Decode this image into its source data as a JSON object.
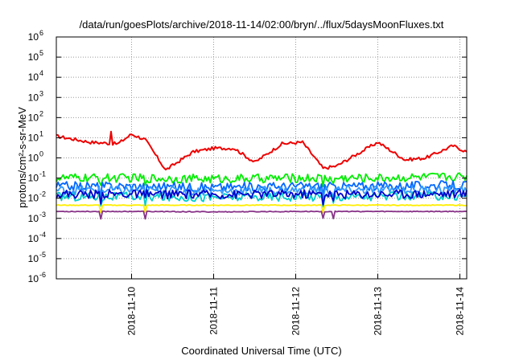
{
  "chart_data": {
    "type": "line",
    "title": "/data/run/goesPlots/archive/2018-11-14/02:00/bryn/../flux/5daysMoonFluxes.txt",
    "xlabel": "Coordinated Universal Time (UTC)",
    "ylabel": "protons/cm²-s-sr-MeV",
    "yscale": "log",
    "ylim": [
      1e-06,
      1000000.0
    ],
    "xlim": [
      "2018-11-09T02:00",
      "2018-11-14T02:00"
    ],
    "x_ticks": [
      "2018-11-10",
      "2018-11-11",
      "2018-11-12",
      "2018-11-13",
      "2018-11-14"
    ],
    "y_ticks": [
      {
        "base": "10",
        "exp": "-6"
      },
      {
        "base": "10",
        "exp": "-5"
      },
      {
        "base": "10",
        "exp": "-4"
      },
      {
        "base": "10",
        "exp": "-3"
      },
      {
        "base": "10",
        "exp": "-2"
      },
      {
        "base": "10",
        "exp": "-1"
      },
      {
        "base": "10",
        "exp": "0"
      },
      {
        "base": "10",
        "exp": "1"
      },
      {
        "base": "10",
        "exp": "2"
      },
      {
        "base": "10",
        "exp": "3"
      },
      {
        "base": "10",
        "exp": "4"
      },
      {
        "base": "10",
        "exp": "5"
      },
      {
        "base": "10",
        "exp": "6"
      }
    ],
    "grid": true,
    "series": [
      {
        "color": "#ee0000",
        "x": [
          "2018-11-09T02:00",
          "2018-11-09T12:00",
          "2018-11-09T20:00",
          "2018-11-10T00:00",
          "2018-11-10T04:00",
          "2018-11-10T10:00",
          "2018-11-10T18:00",
          "2018-11-11T00:00",
          "2018-11-11T06:00",
          "2018-11-11T12:00",
          "2018-11-11T20:00",
          "2018-11-12T02:00",
          "2018-11-12T08:00",
          "2018-11-12T12:00",
          "2018-11-12T16:00",
          "2018-11-13T00:00",
          "2018-11-13T08:00",
          "2018-11-13T14:00",
          "2018-11-13T22:00",
          "2018-11-14T02:00"
        ],
        "values": [
          12,
          6,
          5,
          15,
          8,
          0.25,
          2,
          3,
          3,
          0.6,
          5,
          6,
          0.3,
          0.4,
          1,
          6,
          0.8,
          1,
          4,
          2
        ]
      },
      {
        "color": "#00ee00",
        "x": [
          "2018-11-09T02:00",
          "2018-11-10T00:00",
          "2018-11-11T00:00",
          "2018-11-12T00:00",
          "2018-11-13T00:00",
          "2018-11-14T02:00"
        ],
        "values": [
          0.1,
          0.1,
          0.09,
          0.1,
          0.1,
          0.12
        ]
      },
      {
        "color": "#0066ff",
        "x": [
          "2018-11-09T02:00",
          "2018-11-10T00:00",
          "2018-11-11T00:00",
          "2018-11-12T00:00",
          "2018-11-13T00:00",
          "2018-11-14T02:00"
        ],
        "values": [
          0.04,
          0.04,
          0.035,
          0.04,
          0.04,
          0.045
        ]
      },
      {
        "color": "#3399ff",
        "x": [
          "2018-11-09T02:00",
          "2018-11-10T00:00",
          "2018-11-11T00:00",
          "2018-11-12T00:00",
          "2018-11-13T00:00",
          "2018-11-14T02:00"
        ],
        "values": [
          0.025,
          0.025,
          0.022,
          0.025,
          0.025,
          0.028
        ]
      },
      {
        "color": "#00cccc",
        "x": [
          "2018-11-09T02:00",
          "2018-11-10T00:00",
          "2018-11-11T00:00",
          "2018-11-12T00:00",
          "2018-11-13T00:00",
          "2018-11-14T02:00"
        ],
        "values": [
          0.012,
          0.012,
          0.011,
          0.012,
          0.012,
          0.013
        ]
      },
      {
        "color": "#0000cc",
        "x": [
          "2018-11-09T02:00",
          "2018-11-10T00:00",
          "2018-11-11T00:00",
          "2018-11-12T00:00",
          "2018-11-13T00:00",
          "2018-11-14T02:00"
        ],
        "values": [
          0.016,
          0.016,
          0.015,
          0.016,
          0.016,
          0.017
        ]
      },
      {
        "color": "#ffee00",
        "x": [
          "2018-11-09T02:00",
          "2018-11-10T00:00",
          "2018-11-11T00:00",
          "2018-11-12T00:00",
          "2018-11-13T00:00",
          "2018-11-14T02:00"
        ],
        "values": [
          0.0045,
          0.0045,
          0.0045,
          0.0045,
          0.0045,
          0.0045
        ]
      },
      {
        "color": "#883388",
        "x": [
          "2018-11-09T02:00",
          "2018-11-10T00:00",
          "2018-11-11T00:00",
          "2018-11-12T00:00",
          "2018-11-13T00:00",
          "2018-11-14T02:00"
        ],
        "values": [
          0.0022,
          0.0022,
          0.0021,
          0.0022,
          0.0022,
          0.0022
        ]
      }
    ]
  }
}
